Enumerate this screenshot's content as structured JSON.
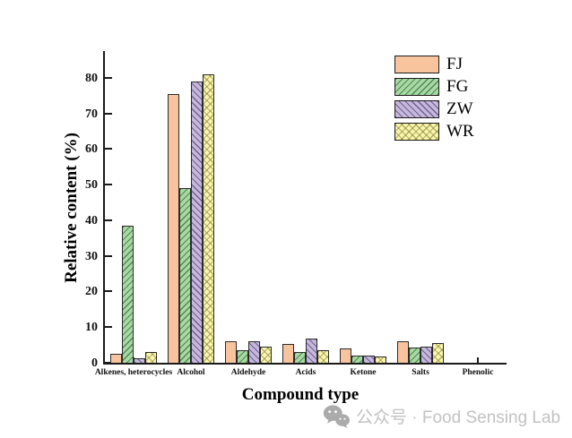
{
  "watermark": {
    "icon": "wechat-icon",
    "icon_color": "#ababab",
    "text": "公众号 · Food Sensing Lab",
    "text_color": "#c2c2c2"
  },
  "chart_data": {
    "type": "bar",
    "title": "",
    "xlabel": "Compound type",
    "ylabel": "Relative content (%)",
    "ylim": [
      0,
      88
    ],
    "yticks": [
      0,
      10,
      20,
      30,
      40,
      50,
      60,
      70,
      80
    ],
    "grid": false,
    "legend_position": "upper right",
    "tick_style": "inward",
    "categories": [
      "Alkenes, heterocycles",
      "Alcohol",
      "Aldehyde",
      "Acids",
      "Ketone",
      "Salts",
      "Phenolic"
    ],
    "series": [
      {
        "name": "FJ",
        "color": "#f8c49e",
        "hatch": "none",
        "values": [
          2.5,
          75.5,
          6.0,
          5.3,
          4.0,
          6.1,
          0
        ]
      },
      {
        "name": "FG",
        "color": "#a6d9a4",
        "hatch": "/",
        "values": [
          38.5,
          49.0,
          3.4,
          2.9,
          1.9,
          4.2,
          0
        ]
      },
      {
        "name": "ZW",
        "color": "#c6b8dc",
        "hatch": "\\",
        "values": [
          1.2,
          79.0,
          6.0,
          6.8,
          2.0,
          4.5,
          0
        ]
      },
      {
        "name": "WR",
        "color": "#f8f5ae",
        "hatch": "x",
        "values": [
          3.1,
          81.0,
          4.5,
          3.4,
          1.7,
          5.6,
          0
        ]
      }
    ]
  }
}
